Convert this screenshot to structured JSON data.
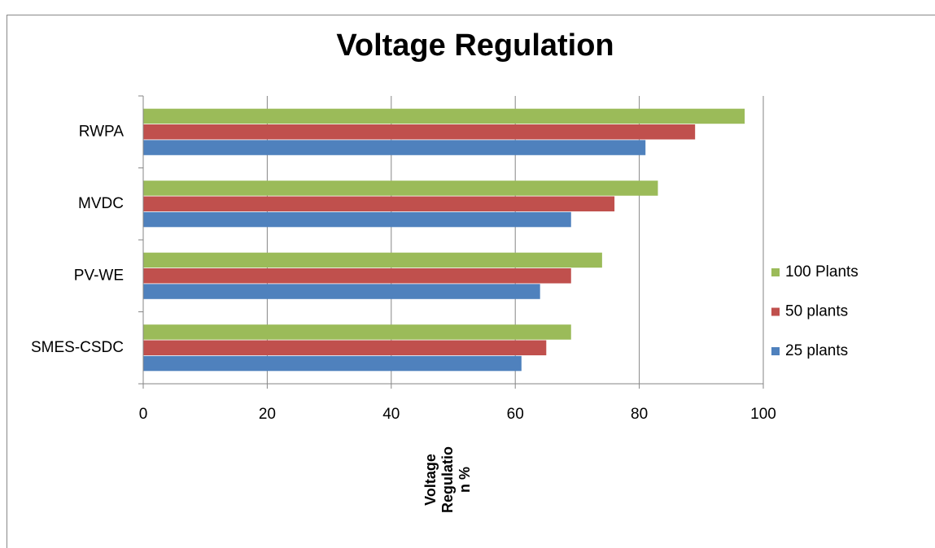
{
  "chart_data": {
    "type": "hbar",
    "title": "Voltage  Regulation",
    "x_label": [
      "Voltage",
      "Regulatio",
      "n %"
    ],
    "categories": [
      "RWPA",
      "MVDC",
      "PV-WE",
      "SMES-CSDC"
    ],
    "series": [
      {
        "name": "25 plants",
        "color": "#4f81bd",
        "values": [
          81,
          69,
          64,
          61
        ]
      },
      {
        "name": "50 plants",
        "color": "#c0504d",
        "values": [
          89,
          76,
          69,
          65
        ]
      },
      {
        "name": "100 Plants",
        "color": "#9bbb59",
        "values": [
          97,
          83,
          74,
          69
        ]
      }
    ],
    "xlim": [
      0,
      100
    ],
    "xticks": [
      0,
      20,
      40,
      60,
      80,
      100
    ],
    "grid": true,
    "legend": "right"
  }
}
